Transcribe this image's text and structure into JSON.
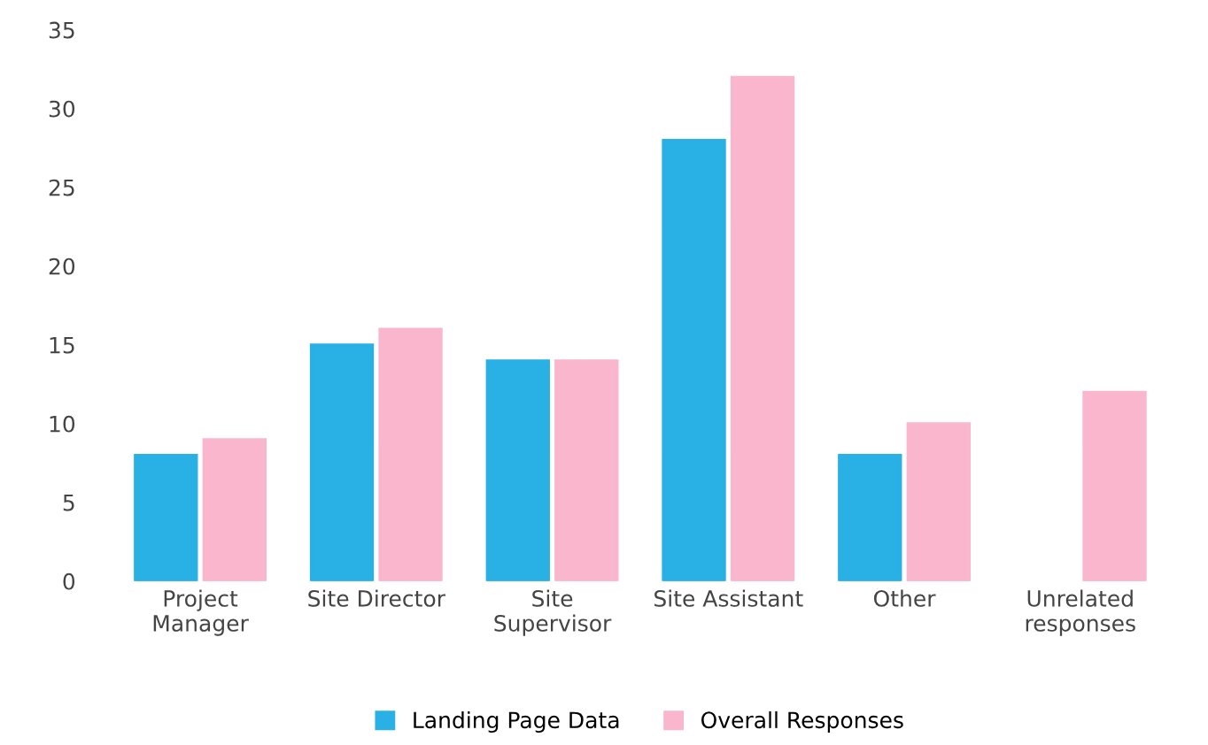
{
  "chart_data": {
    "type": "bar",
    "categories": [
      "Project\nManager",
      "Site Director",
      "Site\nSupervisor",
      "Site Assistant",
      "Other",
      "Unrelated\nresponses"
    ],
    "series": [
      {
        "name": "Landing Page Data",
        "color": "#29b0e4",
        "values": [
          8,
          15,
          14,
          28,
          8,
          null
        ]
      },
      {
        "name": "Overall Responses",
        "color": "#f9b6cc",
        "values": [
          9,
          16,
          14,
          32,
          10,
          12
        ]
      }
    ],
    "ylim": [
      0,
      35
    ],
    "yticks": [
      0,
      5,
      10,
      15,
      20,
      25,
      30,
      35
    ],
    "grid": false,
    "legend": "bottom"
  }
}
